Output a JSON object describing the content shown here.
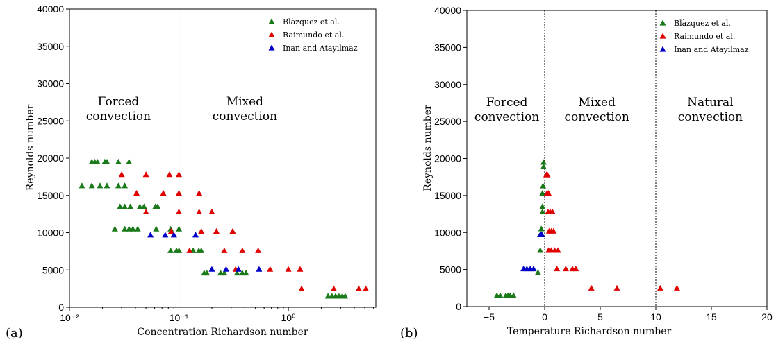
{
  "chart_data": [
    {
      "type": "scatter",
      "panel_label": "(a)",
      "xlabel": "Concentration Richardson number",
      "ylabel": "Reynolds number",
      "xscale": "log",
      "xlim": [
        0.01,
        6.3
      ],
      "ylim": [
        0,
        40000
      ],
      "x_ticks": [
        {
          "value": 0.01,
          "label": "10⁻²"
        },
        {
          "value": 0.1,
          "label": "10⁻¹"
        },
        {
          "value": 1,
          "label": "10⁰"
        }
      ],
      "y_ticks": [
        0,
        5000,
        10000,
        15000,
        20000,
        25000,
        30000,
        35000,
        40000
      ],
      "legend": {
        "position": "top-right",
        "entries": [
          "Blàzquez et al.",
          "Raimundo et al.",
          "Inan and Atayılmaz"
        ]
      },
      "vlines": [
        0.1
      ],
      "regions": [
        {
          "lines": [
            "Forced",
            "convection"
          ],
          "x": 0.028,
          "y": 26500
        },
        {
          "lines": [
            "Mixed",
            "convection"
          ],
          "x": 0.4,
          "y": 26500
        }
      ],
      "series": [
        {
          "name": "Blàzquez et al.",
          "color": "#1a7a1a",
          "points": [
            [
              0.016,
              19500
            ],
            [
              0.017,
              19500
            ],
            [
              0.018,
              19500
            ],
            [
              0.021,
              19500
            ],
            [
              0.022,
              19500
            ],
            [
              0.028,
              19500
            ],
            [
              0.035,
              19500
            ],
            [
              0.013,
              16300
            ],
            [
              0.016,
              16300
            ],
            [
              0.019,
              16300
            ],
            [
              0.022,
              16300
            ],
            [
              0.028,
              16300
            ],
            [
              0.032,
              16300
            ],
            [
              0.029,
              13500
            ],
            [
              0.032,
              13500
            ],
            [
              0.036,
              13500
            ],
            [
              0.044,
              13500
            ],
            [
              0.048,
              13500
            ],
            [
              0.061,
              13500
            ],
            [
              0.064,
              13500
            ],
            [
              0.026,
              10500
            ],
            [
              0.032,
              10500
            ],
            [
              0.035,
              10500
            ],
            [
              0.038,
              10500
            ],
            [
              0.042,
              10500
            ],
            [
              0.062,
              10500
            ],
            [
              0.084,
              10500
            ],
            [
              0.1,
              10500
            ],
            [
              0.084,
              7600
            ],
            [
              0.095,
              7600
            ],
            [
              0.1,
              7600
            ],
            [
              0.135,
              7600
            ],
            [
              0.152,
              7600
            ],
            [
              0.16,
              7600
            ],
            [
              0.17,
              4600
            ],
            [
              0.18,
              4600
            ],
            [
              0.24,
              4600
            ],
            [
              0.26,
              4600
            ],
            [
              0.34,
              4600
            ],
            [
              0.38,
              4600
            ],
            [
              0.41,
              4600
            ],
            [
              2.3,
              1500
            ],
            [
              2.5,
              1500
            ],
            [
              2.7,
              1500
            ],
            [
              2.9,
              1500
            ],
            [
              3.1,
              1500
            ],
            [
              3.3,
              1500
            ]
          ]
        },
        {
          "name": "Raimundo et al.",
          "color": "#e00000",
          "points": [
            [
              0.03,
              17800
            ],
            [
              0.05,
              17800
            ],
            [
              0.082,
              17800
            ],
            [
              0.1,
              17800
            ],
            [
              0.041,
              15300
            ],
            [
              0.072,
              15300
            ],
            [
              0.1,
              15300
            ],
            [
              0.153,
              15300
            ],
            [
              0.05,
              12800
            ],
            [
              0.1,
              12800
            ],
            [
              0.153,
              12800
            ],
            [
              0.2,
              12800
            ],
            [
              0.085,
              10200
            ],
            [
              0.16,
              10200
            ],
            [
              0.22,
              10200
            ],
            [
              0.31,
              10200
            ],
            [
              0.125,
              7600
            ],
            [
              0.26,
              7600
            ],
            [
              0.38,
              7600
            ],
            [
              0.53,
              7600
            ],
            [
              0.33,
              5100
            ],
            [
              0.68,
              5100
            ],
            [
              1.0,
              5100
            ],
            [
              1.28,
              5100
            ],
            [
              1.32,
              2500
            ],
            [
              2.6,
              2500
            ],
            [
              4.4,
              2500
            ],
            [
              5.1,
              2500
            ]
          ]
        },
        {
          "name": "Inan and Atayılmaz",
          "color": "#0000c8",
          "points": [
            [
              0.055,
              9700
            ],
            [
              0.075,
              9700
            ],
            [
              0.09,
              9700
            ],
            [
              0.142,
              9700
            ],
            [
              0.2,
              5100
            ],
            [
              0.27,
              5100
            ],
            [
              0.35,
              5100
            ],
            [
              0.54,
              5100
            ]
          ]
        }
      ]
    },
    {
      "type": "scatter",
      "panel_label": "(b)",
      "xlabel": "Temperature Richardson number",
      "ylabel": "Reynolds number",
      "xscale": "linear",
      "xlim": [
        -7,
        20
      ],
      "ylim": [
        0,
        40000
      ],
      "x_ticks": [
        {
          "value": -5,
          "label": "−5"
        },
        {
          "value": 0,
          "label": "0"
        },
        {
          "value": 5,
          "label": "5"
        },
        {
          "value": 10,
          "label": "10"
        },
        {
          "value": 15,
          "label": "15"
        },
        {
          "value": 20,
          "label": "20"
        }
      ],
      "y_ticks": [
        0,
        5000,
        10000,
        15000,
        20000,
        25000,
        30000,
        35000,
        40000
      ],
      "legend": {
        "position": "top-right",
        "entries": [
          "Blàzquez et al.",
          "Raimundo et al.",
          "Inan and Atayılmaz"
        ]
      },
      "vlines": [
        0,
        10
      ],
      "regions": [
        {
          "lines": [
            "Forced",
            "convection"
          ],
          "x": -3.4,
          "y": 26500
        },
        {
          "lines": [
            "Mixed",
            "convection"
          ],
          "x": 4.7,
          "y": 26500
        },
        {
          "lines": [
            "Natural",
            "convection"
          ],
          "x": 14.9,
          "y": 26500
        }
      ],
      "series": [
        {
          "name": "Blàzquez et al.",
          "color": "#1a7a1a",
          "points": [
            [
              -0.1,
              19500
            ],
            [
              -0.1,
              18900
            ],
            [
              -0.15,
              16300
            ],
            [
              -0.2,
              15300
            ],
            [
              -0.2,
              13500
            ],
            [
              -0.2,
              12800
            ],
            [
              -0.3,
              10500
            ],
            [
              -0.3,
              9800
            ],
            [
              -0.4,
              7600
            ],
            [
              -0.6,
              4600
            ],
            [
              -4.3,
              1500
            ],
            [
              -4.0,
              1500
            ],
            [
              -3.5,
              1500
            ],
            [
              -3.3,
              1500
            ],
            [
              -3.1,
              1500
            ],
            [
              -2.8,
              1500
            ]
          ]
        },
        {
          "name": "Raimundo et al.",
          "color": "#e00000",
          "points": [
            [
              0.15,
              17800
            ],
            [
              0.25,
              17800
            ],
            [
              0.2,
              15300
            ],
            [
              0.35,
              15300
            ],
            [
              0.3,
              12800
            ],
            [
              0.5,
              12800
            ],
            [
              0.7,
              12800
            ],
            [
              0.4,
              10200
            ],
            [
              0.6,
              10200
            ],
            [
              0.8,
              10200
            ],
            [
              0.35,
              7600
            ],
            [
              0.6,
              7600
            ],
            [
              0.9,
              7600
            ],
            [
              1.2,
              7600
            ],
            [
              1.1,
              5100
            ],
            [
              1.9,
              5100
            ],
            [
              2.5,
              5100
            ],
            [
              2.8,
              5100
            ],
            [
              4.2,
              2500
            ],
            [
              6.5,
              2500
            ],
            [
              10.4,
              2500
            ],
            [
              11.9,
              2500
            ]
          ]
        },
        {
          "name": "Inan and Atayılmaz",
          "color": "#0000c8",
          "points": [
            [
              -0.4,
              9700
            ],
            [
              -0.35,
              9700
            ],
            [
              -0.3,
              9700
            ],
            [
              -0.25,
              9700
            ],
            [
              -1.9,
              5100
            ],
            [
              -1.6,
              5100
            ],
            [
              -1.3,
              5100
            ],
            [
              -1.0,
              5100
            ]
          ]
        }
      ]
    }
  ]
}
